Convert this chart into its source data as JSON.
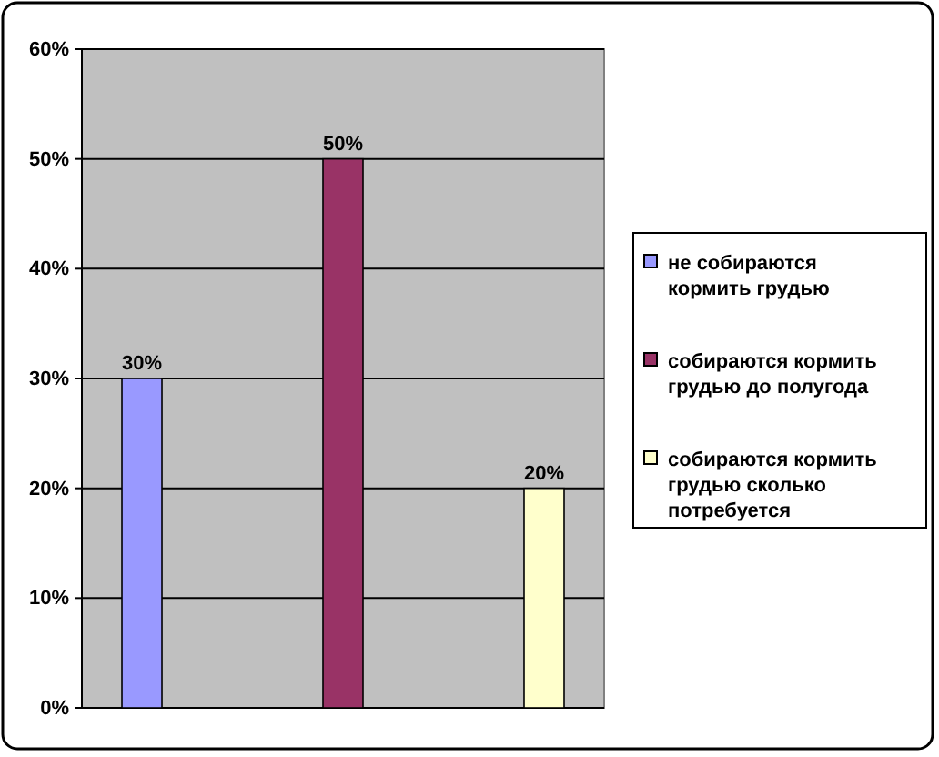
{
  "chart_data": {
    "type": "bar",
    "categories": [
      null
    ],
    "series": [
      {
        "name": "не собираются кормить грудью",
        "color": "#9999ff",
        "values": [
          30
        ],
        "value_labels": [
          "30%"
        ]
      },
      {
        "name": "собираются кормить грудью до полугода",
        "color": "#993366",
        "values": [
          50
        ],
        "value_labels": [
          "50%"
        ]
      },
      {
        "name": "собираются кормить грудью сколько потребуется",
        "color": "#ffffcc",
        "values": [
          20
        ],
        "value_labels": [
          "20%"
        ]
      }
    ],
    "ylim": [
      0,
      60
    ],
    "yticks": [
      {
        "value": 0,
        "label": "0%"
      },
      {
        "value": 10,
        "label": "10%"
      },
      {
        "value": 20,
        "label": "20%"
      },
      {
        "value": 30,
        "label": "30%"
      },
      {
        "value": 40,
        "label": "40%"
      },
      {
        "value": 50,
        "label": "50%"
      },
      {
        "value": 60,
        "label": "60%"
      }
    ],
    "grid": "y",
    "legend": "right"
  }
}
